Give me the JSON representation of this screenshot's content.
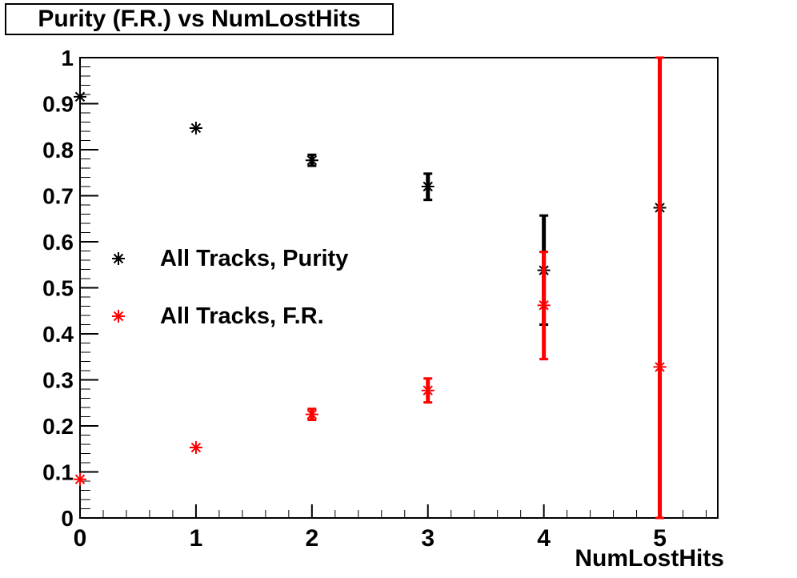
{
  "title": "Purity (F.R.) vs NumLostHits",
  "chart_data": {
    "type": "scatter",
    "title": "Purity (F.R.) vs NumLostHits",
    "xlabel": "NumLostHits",
    "ylabel": "",
    "xlim": [
      0,
      5.5
    ],
    "ylim": [
      0,
      1
    ],
    "x_major_ticks": [
      0,
      1,
      2,
      3,
      4,
      5
    ],
    "x_tick_labels": [
      "0",
      "1",
      "2",
      "3",
      "4",
      "5"
    ],
    "x_minor_step": 0.2,
    "y_major_ticks": [
      0,
      0.1,
      0.2,
      0.3,
      0.4,
      0.5,
      0.6,
      0.7,
      0.8,
      0.9,
      1
    ],
    "y_tick_labels": [
      "0",
      "0.1",
      "0.2",
      "0.3",
      "0.4",
      "0.5",
      "0.6",
      "0.7",
      "0.8",
      "0.9",
      "1"
    ],
    "y_minor_step": 0.02,
    "grid": false,
    "frame_color": "#000000",
    "background_color": "#ffffff",
    "legend": {
      "position": "inside-top-left",
      "entries": [
        {
          "label": "All Tracks, Purity",
          "color": "#000000",
          "marker": "asterisk"
        },
        {
          "label": "All Tracks, F.R.",
          "color": "#ff0000",
          "marker": "asterisk"
        }
      ]
    },
    "series": [
      {
        "name": "All Tracks, Purity",
        "color": "#000000",
        "marker": "asterisk",
        "points": [
          {
            "x": 0,
            "y": 0.915,
            "eyl": 0,
            "eyh": 0
          },
          {
            "x": 1,
            "y": 0.847,
            "eyl": 0,
            "eyh": 0
          },
          {
            "x": 2,
            "y": 0.777,
            "eyl": 0.012,
            "eyh": 0.012
          },
          {
            "x": 3,
            "y": 0.72,
            "eyl": 0.029,
            "eyh": 0.028
          },
          {
            "x": 4,
            "y": 0.538,
            "eyl": 0.118,
            "eyh": 0.119
          },
          {
            "x": 5,
            "y": 0.674,
            "eyl": 0.674,
            "eyh": 0.326,
            "caps": false
          }
        ]
      },
      {
        "name": "All Tracks, F.R.",
        "color": "#ff0000",
        "marker": "asterisk",
        "points": [
          {
            "x": 0,
            "y": 0.084,
            "eyl": 0,
            "eyh": 0
          },
          {
            "x": 1,
            "y": 0.153,
            "eyl": 0,
            "eyh": 0
          },
          {
            "x": 2,
            "y": 0.225,
            "eyl": 0.012,
            "eyh": 0.012
          },
          {
            "x": 3,
            "y": 0.277,
            "eyl": 0.026,
            "eyh": 0.026
          },
          {
            "x": 4,
            "y": 0.462,
            "eyl": 0.117,
            "eyh": 0.116
          },
          {
            "x": 5,
            "y": 0.328,
            "eyl": 0.328,
            "eyh": 0.672
          }
        ]
      }
    ]
  }
}
